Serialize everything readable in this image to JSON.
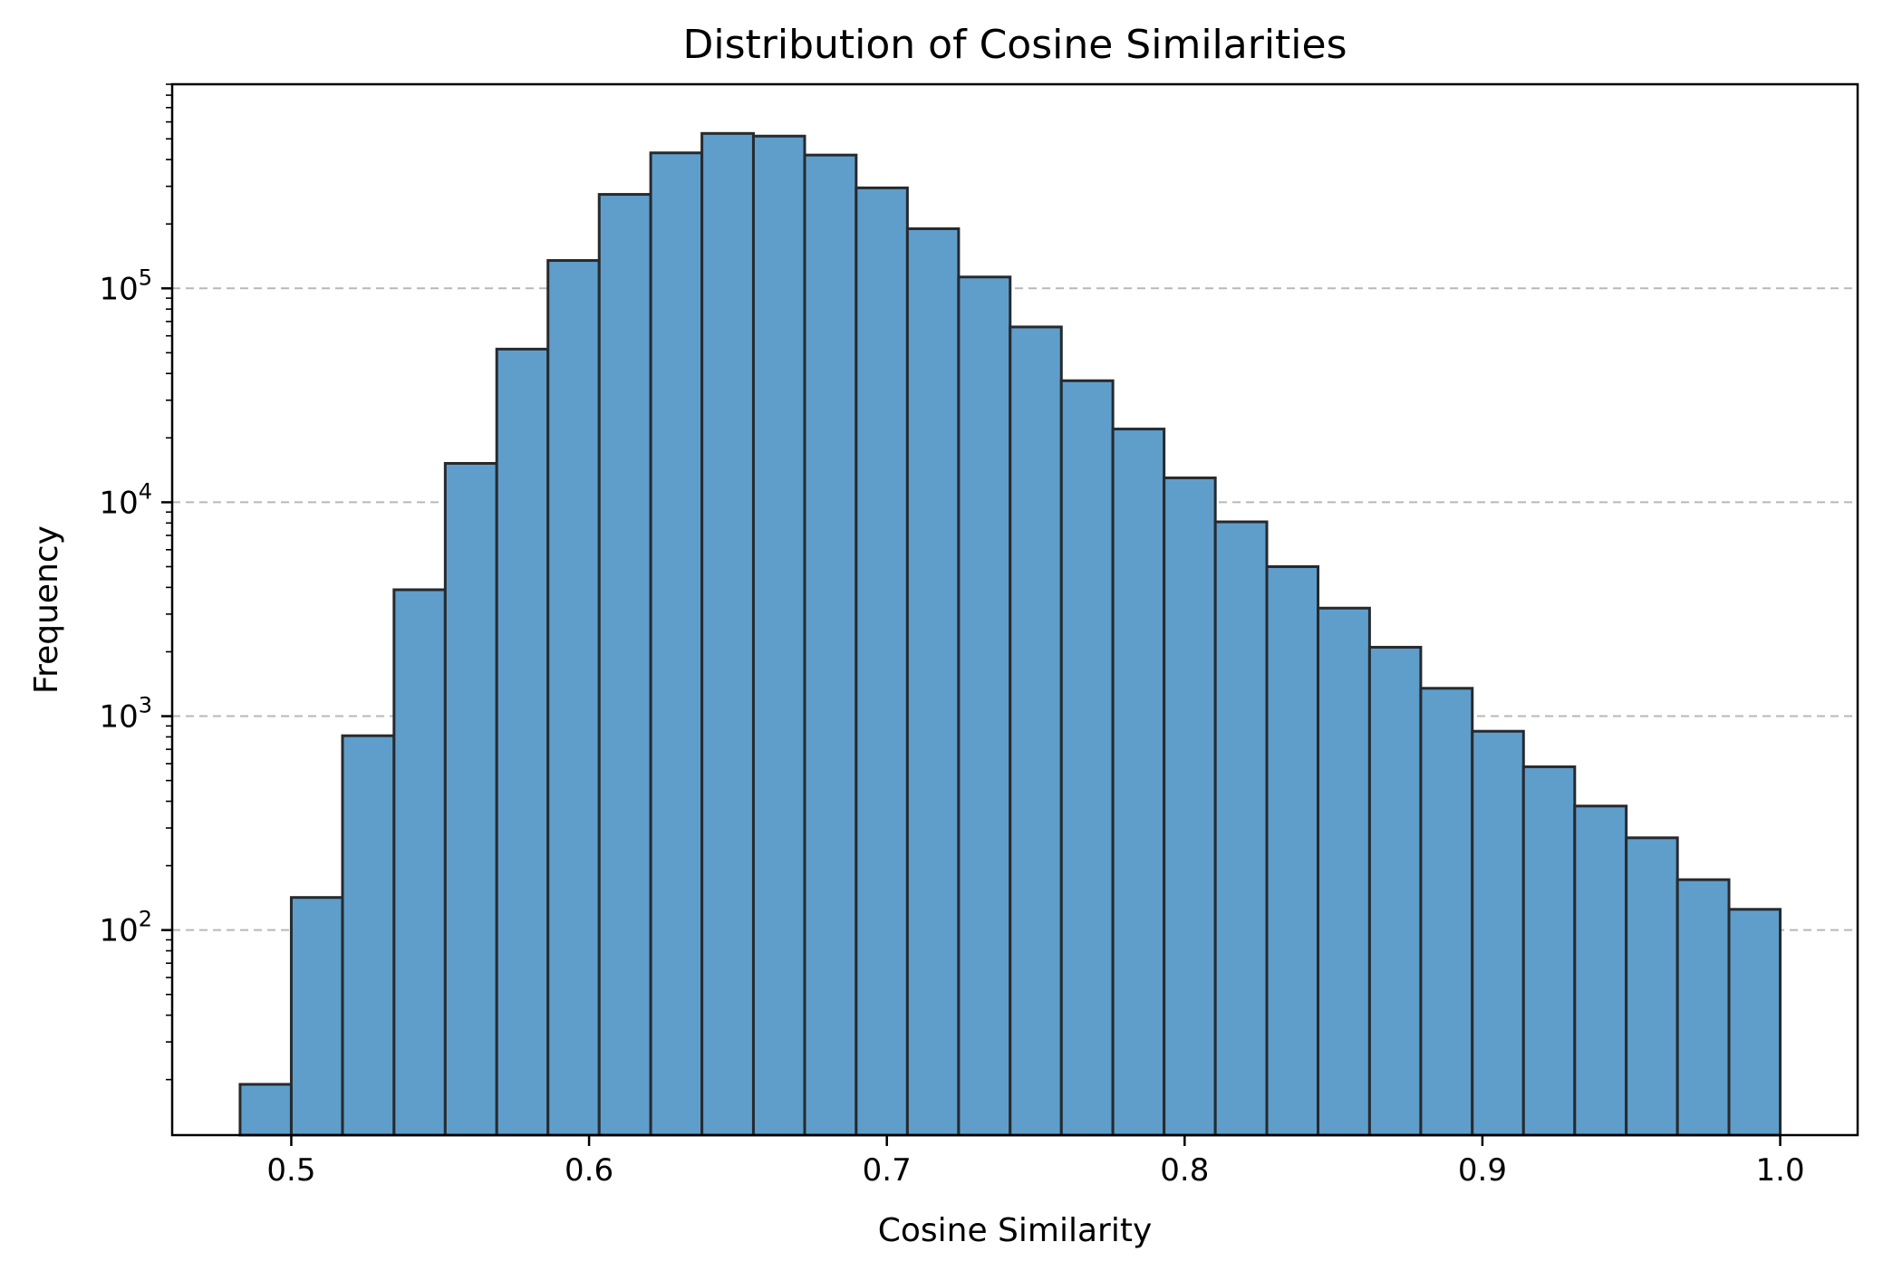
{
  "chart_data": {
    "type": "bar",
    "title": "Distribution of Cosine Similarities",
    "xlabel": "Cosine Similarity",
    "ylabel": "Frequency",
    "xlim": [
      0.46,
      1.026
    ],
    "ylim": [
      11,
      900000
    ],
    "yscale": "log",
    "grid": "y-major-dashed",
    "bar_color": "#5f9ecb",
    "edge_color": "#262a2e",
    "grid_color": "#b8b8b8",
    "xticks": [
      {
        "value": 0.5,
        "label": "0.5"
      },
      {
        "value": 0.6,
        "label": "0.6"
      },
      {
        "value": 0.7,
        "label": "0.7"
      },
      {
        "value": 0.8,
        "label": "0.8"
      },
      {
        "value": 0.9,
        "label": "0.9"
      },
      {
        "value": 1.0,
        "label": "1.0"
      }
    ],
    "yticks": [
      {
        "value": 100,
        "base": "10",
        "exp": "2"
      },
      {
        "value": 1000,
        "base": "10",
        "exp": "3"
      },
      {
        "value": 10000,
        "base": "10",
        "exp": "4"
      },
      {
        "value": 100000,
        "base": "10",
        "exp": "5"
      }
    ],
    "bins": [
      {
        "start": 0.4828,
        "end": 0.5,
        "value": 19
      },
      {
        "start": 0.5,
        "end": 0.5172,
        "value": 142
      },
      {
        "start": 0.5172,
        "end": 0.5345,
        "value": 810
      },
      {
        "start": 0.5345,
        "end": 0.5517,
        "value": 3900
      },
      {
        "start": 0.5517,
        "end": 0.569,
        "value": 15200
      },
      {
        "start": 0.569,
        "end": 0.5862,
        "value": 52000
      },
      {
        "start": 0.5862,
        "end": 0.6034,
        "value": 135000
      },
      {
        "start": 0.6034,
        "end": 0.6207,
        "value": 275000
      },
      {
        "start": 0.6207,
        "end": 0.6379,
        "value": 430000
      },
      {
        "start": 0.6379,
        "end": 0.6552,
        "value": 530000
      },
      {
        "start": 0.6552,
        "end": 0.6724,
        "value": 515000
      },
      {
        "start": 0.6724,
        "end": 0.6897,
        "value": 420000
      },
      {
        "start": 0.6897,
        "end": 0.7069,
        "value": 295000
      },
      {
        "start": 0.7069,
        "end": 0.7241,
        "value": 190000
      },
      {
        "start": 0.7241,
        "end": 0.7414,
        "value": 113000
      },
      {
        "start": 0.7414,
        "end": 0.7586,
        "value": 66000
      },
      {
        "start": 0.7586,
        "end": 0.7759,
        "value": 37000
      },
      {
        "start": 0.7759,
        "end": 0.7931,
        "value": 22000
      },
      {
        "start": 0.7931,
        "end": 0.8103,
        "value": 13000
      },
      {
        "start": 0.8103,
        "end": 0.8276,
        "value": 8100
      },
      {
        "start": 0.8276,
        "end": 0.8448,
        "value": 5000
      },
      {
        "start": 0.8448,
        "end": 0.8621,
        "value": 3200
      },
      {
        "start": 0.8621,
        "end": 0.8793,
        "value": 2100
      },
      {
        "start": 0.8793,
        "end": 0.8966,
        "value": 1350
      },
      {
        "start": 0.8966,
        "end": 0.9138,
        "value": 850
      },
      {
        "start": 0.9138,
        "end": 0.931,
        "value": 580
      },
      {
        "start": 0.931,
        "end": 0.9483,
        "value": 380
      },
      {
        "start": 0.9483,
        "end": 0.9655,
        "value": 270
      },
      {
        "start": 0.9655,
        "end": 0.9828,
        "value": 172
      },
      {
        "start": 0.9828,
        "end": 1.0,
        "value": 125
      }
    ]
  }
}
